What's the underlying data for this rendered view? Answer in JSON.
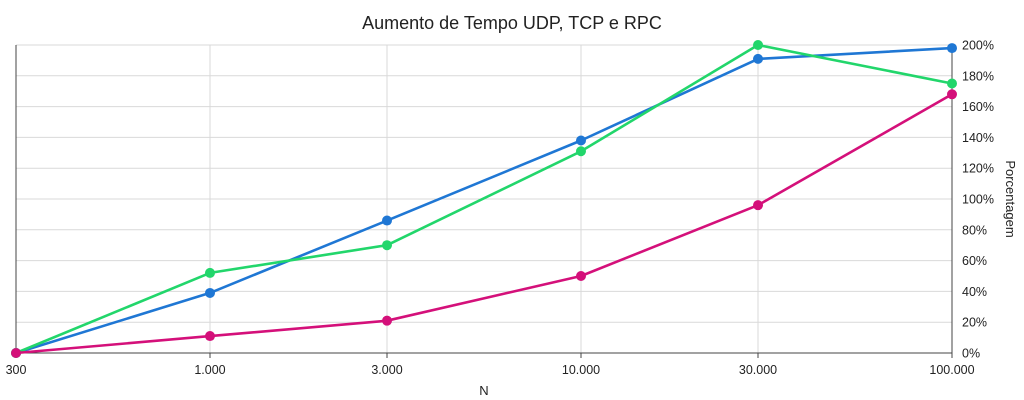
{
  "chart_data": {
    "type": "line",
    "title": "Aumento de Tempo UDP, TCP e RPC",
    "xlabel": "N",
    "ylabel": "Porcentagem",
    "categories": [
      "300",
      "1.000",
      "3.000",
      "10.000",
      "30.000",
      "100.000"
    ],
    "y_ticks": [
      "0%",
      "20%",
      "40%",
      "60%",
      "80%",
      "100%",
      "120%",
      "140%",
      "160%",
      "180%",
      "200%"
    ],
    "ylim": [
      0,
      200
    ],
    "y_axis_side": "right",
    "x_scale": "log",
    "grid": true,
    "series": [
      {
        "values": [
          0,
          39,
          86,
          138,
          191,
          198
        ],
        "color": "#1f77d4"
      },
      {
        "values": [
          0,
          52,
          70,
          131,
          200,
          175
        ],
        "color": "#22d66b"
      },
      {
        "values": [
          0,
          11,
          21,
          50,
          96,
          168
        ],
        "color": "#d4107a"
      }
    ]
  }
}
